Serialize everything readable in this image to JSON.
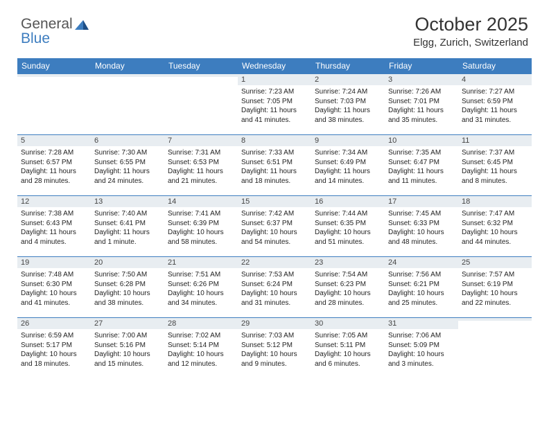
{
  "logo": {
    "part1": "General",
    "part2": "Blue"
  },
  "header": {
    "title": "October 2025",
    "location": "Elgg, Zurich, Switzerland"
  },
  "colors": {
    "header_bg": "#3d7dbf",
    "header_text": "#ffffff",
    "daynum_bg": "#e8edf1",
    "daynum_border": "#3d7dbf",
    "body_text": "#222222",
    "logo_gray": "#555555",
    "logo_blue": "#3d7dbf"
  },
  "day_labels": [
    "Sunday",
    "Monday",
    "Tuesday",
    "Wednesday",
    "Thursday",
    "Friday",
    "Saturday"
  ],
  "weeks": [
    [
      {
        "n": "",
        "lines": []
      },
      {
        "n": "",
        "lines": []
      },
      {
        "n": "",
        "lines": []
      },
      {
        "n": "1",
        "lines": [
          "Sunrise: 7:23 AM",
          "Sunset: 7:05 PM",
          "Daylight: 11 hours",
          "and 41 minutes."
        ]
      },
      {
        "n": "2",
        "lines": [
          "Sunrise: 7:24 AM",
          "Sunset: 7:03 PM",
          "Daylight: 11 hours",
          "and 38 minutes."
        ]
      },
      {
        "n": "3",
        "lines": [
          "Sunrise: 7:26 AM",
          "Sunset: 7:01 PM",
          "Daylight: 11 hours",
          "and 35 minutes."
        ]
      },
      {
        "n": "4",
        "lines": [
          "Sunrise: 7:27 AM",
          "Sunset: 6:59 PM",
          "Daylight: 11 hours",
          "and 31 minutes."
        ]
      }
    ],
    [
      {
        "n": "5",
        "lines": [
          "Sunrise: 7:28 AM",
          "Sunset: 6:57 PM",
          "Daylight: 11 hours",
          "and 28 minutes."
        ]
      },
      {
        "n": "6",
        "lines": [
          "Sunrise: 7:30 AM",
          "Sunset: 6:55 PM",
          "Daylight: 11 hours",
          "and 24 minutes."
        ]
      },
      {
        "n": "7",
        "lines": [
          "Sunrise: 7:31 AM",
          "Sunset: 6:53 PM",
          "Daylight: 11 hours",
          "and 21 minutes."
        ]
      },
      {
        "n": "8",
        "lines": [
          "Sunrise: 7:33 AM",
          "Sunset: 6:51 PM",
          "Daylight: 11 hours",
          "and 18 minutes."
        ]
      },
      {
        "n": "9",
        "lines": [
          "Sunrise: 7:34 AM",
          "Sunset: 6:49 PM",
          "Daylight: 11 hours",
          "and 14 minutes."
        ]
      },
      {
        "n": "10",
        "lines": [
          "Sunrise: 7:35 AM",
          "Sunset: 6:47 PM",
          "Daylight: 11 hours",
          "and 11 minutes."
        ]
      },
      {
        "n": "11",
        "lines": [
          "Sunrise: 7:37 AM",
          "Sunset: 6:45 PM",
          "Daylight: 11 hours",
          "and 8 minutes."
        ]
      }
    ],
    [
      {
        "n": "12",
        "lines": [
          "Sunrise: 7:38 AM",
          "Sunset: 6:43 PM",
          "Daylight: 11 hours",
          "and 4 minutes."
        ]
      },
      {
        "n": "13",
        "lines": [
          "Sunrise: 7:40 AM",
          "Sunset: 6:41 PM",
          "Daylight: 11 hours",
          "and 1 minute."
        ]
      },
      {
        "n": "14",
        "lines": [
          "Sunrise: 7:41 AM",
          "Sunset: 6:39 PM",
          "Daylight: 10 hours",
          "and 58 minutes."
        ]
      },
      {
        "n": "15",
        "lines": [
          "Sunrise: 7:42 AM",
          "Sunset: 6:37 PM",
          "Daylight: 10 hours",
          "and 54 minutes."
        ]
      },
      {
        "n": "16",
        "lines": [
          "Sunrise: 7:44 AM",
          "Sunset: 6:35 PM",
          "Daylight: 10 hours",
          "and 51 minutes."
        ]
      },
      {
        "n": "17",
        "lines": [
          "Sunrise: 7:45 AM",
          "Sunset: 6:33 PM",
          "Daylight: 10 hours",
          "and 48 minutes."
        ]
      },
      {
        "n": "18",
        "lines": [
          "Sunrise: 7:47 AM",
          "Sunset: 6:32 PM",
          "Daylight: 10 hours",
          "and 44 minutes."
        ]
      }
    ],
    [
      {
        "n": "19",
        "lines": [
          "Sunrise: 7:48 AM",
          "Sunset: 6:30 PM",
          "Daylight: 10 hours",
          "and 41 minutes."
        ]
      },
      {
        "n": "20",
        "lines": [
          "Sunrise: 7:50 AM",
          "Sunset: 6:28 PM",
          "Daylight: 10 hours",
          "and 38 minutes."
        ]
      },
      {
        "n": "21",
        "lines": [
          "Sunrise: 7:51 AM",
          "Sunset: 6:26 PM",
          "Daylight: 10 hours",
          "and 34 minutes."
        ]
      },
      {
        "n": "22",
        "lines": [
          "Sunrise: 7:53 AM",
          "Sunset: 6:24 PM",
          "Daylight: 10 hours",
          "and 31 minutes."
        ]
      },
      {
        "n": "23",
        "lines": [
          "Sunrise: 7:54 AM",
          "Sunset: 6:23 PM",
          "Daylight: 10 hours",
          "and 28 minutes."
        ]
      },
      {
        "n": "24",
        "lines": [
          "Sunrise: 7:56 AM",
          "Sunset: 6:21 PM",
          "Daylight: 10 hours",
          "and 25 minutes."
        ]
      },
      {
        "n": "25",
        "lines": [
          "Sunrise: 7:57 AM",
          "Sunset: 6:19 PM",
          "Daylight: 10 hours",
          "and 22 minutes."
        ]
      }
    ],
    [
      {
        "n": "26",
        "lines": [
          "Sunrise: 6:59 AM",
          "Sunset: 5:17 PM",
          "Daylight: 10 hours",
          "and 18 minutes."
        ]
      },
      {
        "n": "27",
        "lines": [
          "Sunrise: 7:00 AM",
          "Sunset: 5:16 PM",
          "Daylight: 10 hours",
          "and 15 minutes."
        ]
      },
      {
        "n": "28",
        "lines": [
          "Sunrise: 7:02 AM",
          "Sunset: 5:14 PM",
          "Daylight: 10 hours",
          "and 12 minutes."
        ]
      },
      {
        "n": "29",
        "lines": [
          "Sunrise: 7:03 AM",
          "Sunset: 5:12 PM",
          "Daylight: 10 hours",
          "and 9 minutes."
        ]
      },
      {
        "n": "30",
        "lines": [
          "Sunrise: 7:05 AM",
          "Sunset: 5:11 PM",
          "Daylight: 10 hours",
          "and 6 minutes."
        ]
      },
      {
        "n": "31",
        "lines": [
          "Sunrise: 7:06 AM",
          "Sunset: 5:09 PM",
          "Daylight: 10 hours",
          "and 3 minutes."
        ]
      },
      {
        "n": "",
        "lines": []
      }
    ]
  ]
}
